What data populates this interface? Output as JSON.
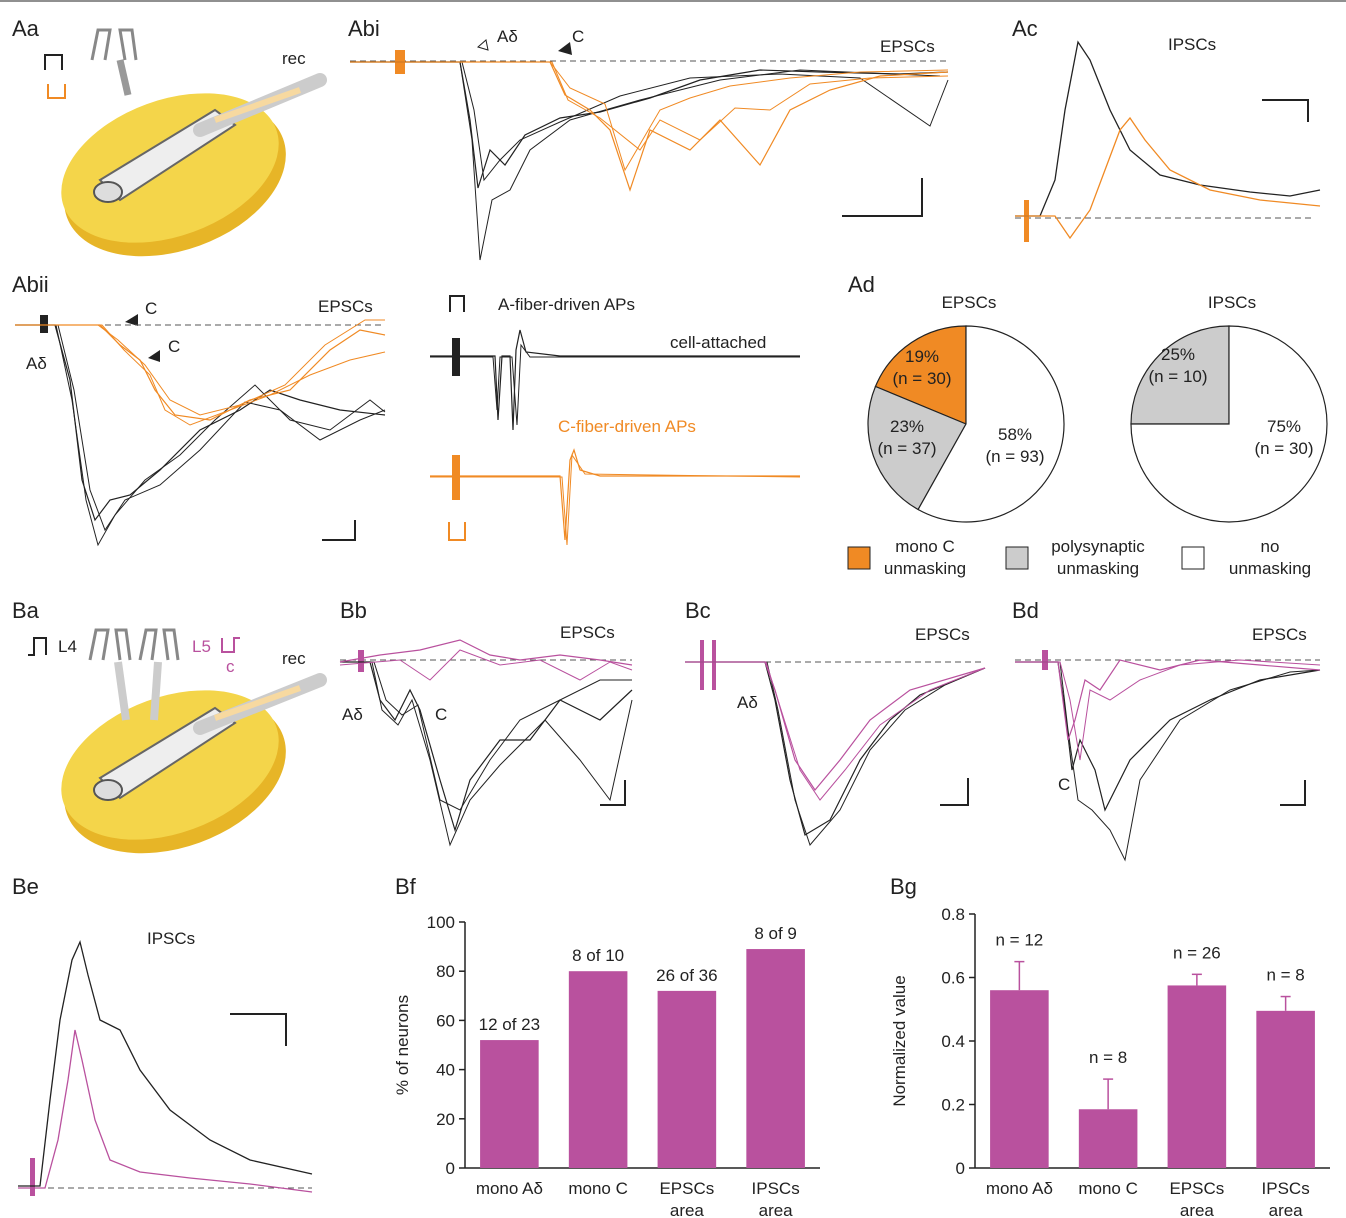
{
  "colors": {
    "black": "#222222",
    "orange": "#f08a24",
    "magenta": "#b9519e",
    "gray": "#cccccc",
    "prep_yellow": "#f2cf3a"
  },
  "panels": {
    "Aa": {
      "label": "Aa",
      "rec": "rec"
    },
    "Abi": {
      "label": "Abi",
      "title": "EPSCs",
      "ad": "Aδ",
      "c": "C"
    },
    "Ac": {
      "label": "Ac",
      "title": "IPSCs"
    },
    "Abii": {
      "label": "Abii",
      "title": "EPSCs",
      "c1": "C",
      "c2": "C",
      "ad": "Aδ",
      "a_aps": "A-fiber-driven APs",
      "cell_attached": "cell-attached",
      "c_aps": "C-fiber-driven APs"
    },
    "Ad": {
      "label": "Ad"
    },
    "Ba": {
      "label": "Ba",
      "l4": "L4",
      "l5": "L5",
      "c": "c",
      "rec": "rec"
    },
    "Bb": {
      "label": "Bb",
      "title": "EPSCs",
      "ad": "Aδ",
      "c": "C"
    },
    "Bc": {
      "label": "Bc",
      "title": "EPSCs",
      "ad": "Aδ"
    },
    "Bd": {
      "label": "Bd",
      "title": "EPSCs",
      "c": "C"
    },
    "Be": {
      "label": "Be",
      "title": "IPSCs"
    },
    "Bf": {
      "label": "Bf"
    },
    "Bg": {
      "label": "Bg"
    }
  },
  "legend": {
    "mono": [
      "mono C",
      "unmasking"
    ],
    "poly": [
      "polysynaptic",
      "unmasking"
    ],
    "none": [
      "no",
      "unmasking"
    ]
  },
  "chart_data": [
    {
      "type": "pie",
      "title": "EPSCs",
      "slices": [
        {
          "label": "mono C unmasking",
          "percent": "19%",
          "n": "(n = 30)",
          "value": 30,
          "color": "#f08a24"
        },
        {
          "label": "polysynaptic unmasking",
          "percent": "23%",
          "n": "(n = 37)",
          "value": 37,
          "color": "#cccccc"
        },
        {
          "label": "no unmasking",
          "percent": "58%",
          "n": "(n = 93)",
          "value": 93,
          "color": "#ffffff"
        }
      ]
    },
    {
      "type": "pie",
      "title": "IPSCs",
      "slices": [
        {
          "label": "polysynaptic unmasking",
          "percent": "25%",
          "n": "(n = 10)",
          "value": 10,
          "color": "#cccccc"
        },
        {
          "label": "no unmasking",
          "percent": "75%",
          "n": "(n = 30)",
          "value": 30,
          "color": "#ffffff"
        }
      ]
    },
    {
      "type": "bar",
      "ylabel": "% of neurons",
      "ylim": [
        0,
        100
      ],
      "yticks": [
        0,
        20,
        40,
        60,
        80,
        100
      ],
      "categories": [
        [
          "mono Aδ"
        ],
        [
          "mono C"
        ],
        [
          "EPSCs",
          "area"
        ],
        [
          "IPSCs",
          "area"
        ]
      ],
      "values": [
        52,
        80,
        72,
        89
      ],
      "data_labels": [
        "12 of 23",
        "8 of 10",
        "26 of 36",
        "8 of 9"
      ]
    },
    {
      "type": "bar",
      "ylabel": "Normalized value",
      "ylim": [
        0,
        0.8
      ],
      "yticks": [
        "0",
        "0.2",
        "0.4",
        "0.6",
        "0.8"
      ],
      "categories": [
        [
          "mono Aδ"
        ],
        [
          "mono C"
        ],
        [
          "EPSCs",
          "area"
        ],
        [
          "IPSCs",
          "area"
        ]
      ],
      "values": [
        0.56,
        0.185,
        0.575,
        0.495
      ],
      "errors": [
        0.09,
        0.095,
        0.035,
        0.045
      ],
      "data_labels": [
        "n = 12",
        "n = 8",
        "n = 26",
        "n = 8"
      ]
    }
  ]
}
